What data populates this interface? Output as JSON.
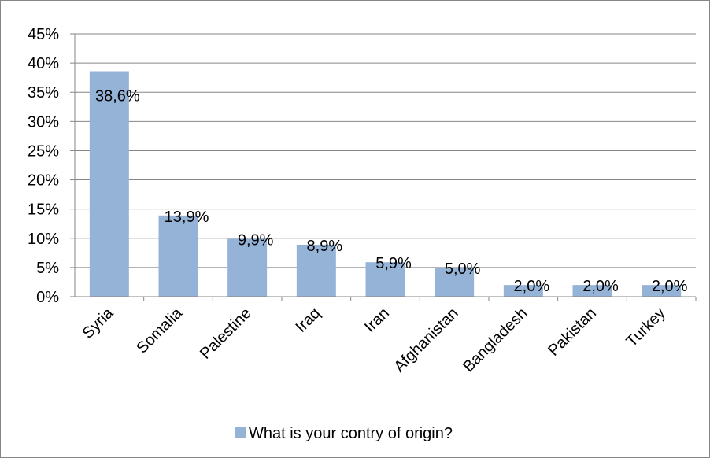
{
  "chart_data": {
    "type": "bar",
    "categories": [
      "Syria",
      "Somalia",
      "Palestine",
      "Iraq",
      "Iran",
      "Afghanistan",
      "Bangladesh",
      "Pakistan",
      "Turkey"
    ],
    "series": [
      {
        "name": "What is your contry of origin?",
        "values": [
          38.6,
          13.9,
          9.9,
          8.9,
          5.9,
          5.0,
          2.0,
          2.0,
          2.0
        ],
        "data_labels": [
          "38,6%",
          "13,9%",
          "9,9%",
          "8,9%",
          "5,9%",
          "5,0%",
          "2,0%",
          "2,0%",
          "2,0%"
        ]
      }
    ],
    "ylim": [
      0,
      45
    ],
    "y_ticks": [
      0,
      5,
      10,
      15,
      20,
      25,
      30,
      35,
      40,
      45
    ],
    "y_tick_labels": [
      "0%",
      "5%",
      "10%",
      "15%",
      "20%",
      "25%",
      "30%",
      "35%",
      "40%",
      "45%"
    ],
    "grid": true,
    "legend_position": "bottom",
    "colors": {
      "bar": "#95b3d7",
      "gridline": "#868686",
      "axis": "#868686"
    }
  }
}
